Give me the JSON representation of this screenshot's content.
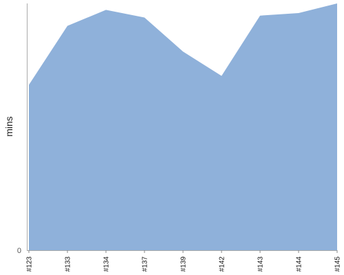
{
  "chart_data": {
    "type": "area",
    "categories": [
      "#123",
      "#133",
      "#134",
      "#137",
      "#139",
      "#142",
      "#143",
      "#144",
      "#145"
    ],
    "series": [
      {
        "values": [
          25.8,
          35.0,
          37.5,
          36.3,
          31.0,
          27.2,
          36.6,
          37.0,
          38.5
        ]
      }
    ],
    "ylabel": "mins",
    "yticks": [
      "0"
    ],
    "ylim": [
      0,
      38.5
    ],
    "grid": false,
    "colors": {
      "area_fill": "#8fb1da",
      "axis": "#aaaaaa",
      "tick": "#888888"
    }
  }
}
